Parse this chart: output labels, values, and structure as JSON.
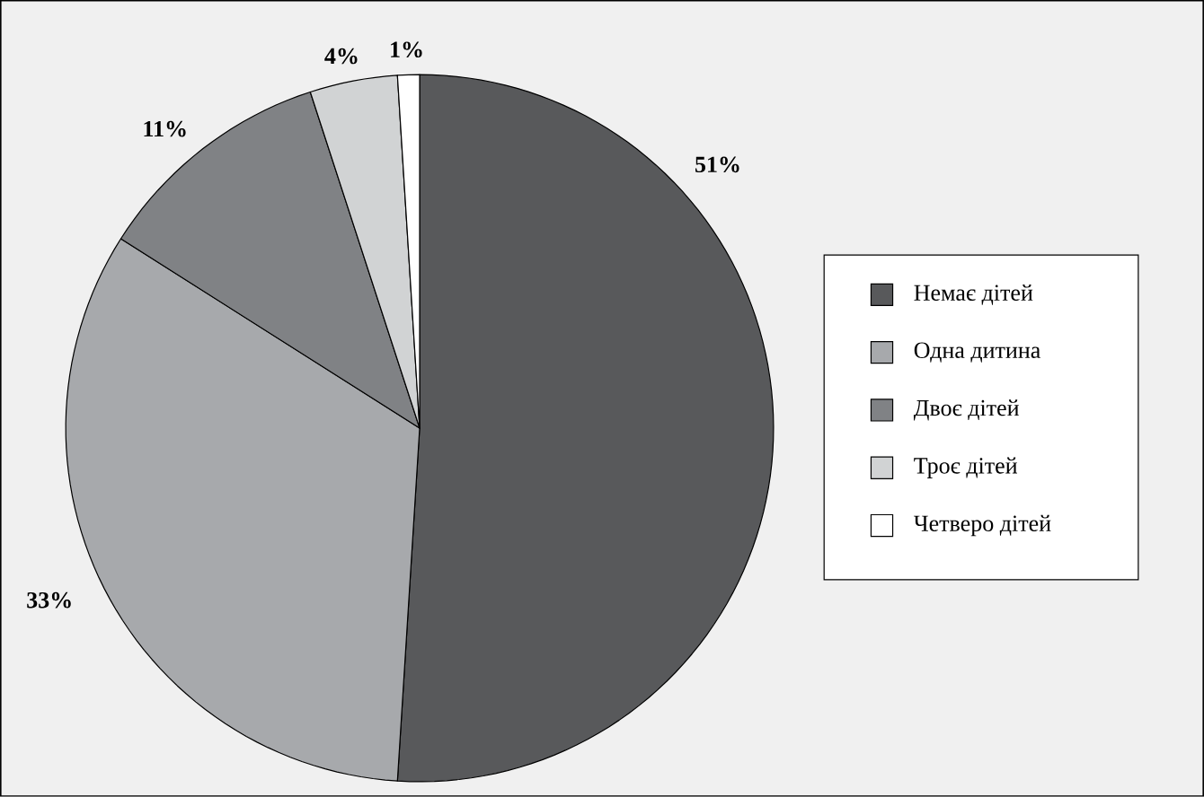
{
  "chart_data": {
    "type": "pie",
    "categories": [
      "Немає дітей",
      "Одна дитина",
      "Двоє дітей",
      "Троє дітей",
      "Четверо дітей"
    ],
    "values": [
      51,
      33,
      11,
      4,
      1
    ],
    "colors": [
      "#58595b",
      "#a7a9ac",
      "#808285",
      "#d1d3d4",
      "#ffffff"
    ],
    "value_labels": [
      "51%",
      "33%",
      "11%",
      "4%",
      "1%"
    ],
    "legend": "right"
  }
}
